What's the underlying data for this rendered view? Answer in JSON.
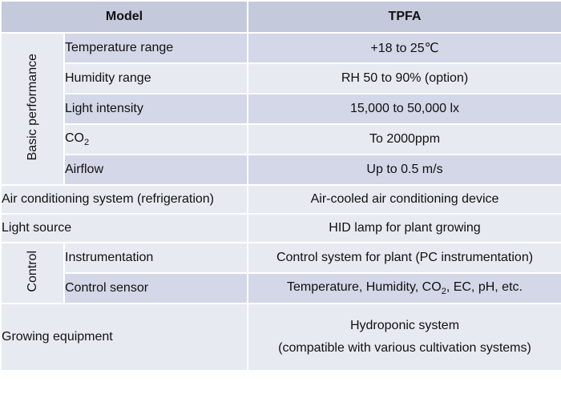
{
  "header": {
    "model": "Model",
    "tpfa": "TPFA"
  },
  "groups": {
    "basic": "Basic performance",
    "control": "Control"
  },
  "rows": {
    "temperature": {
      "label": "Temperature range",
      "value": "+18 to 25℃"
    },
    "humidity": {
      "label": "Humidity range",
      "value": "RH 50 to 90% (option)"
    },
    "light": {
      "label": "Light intensity",
      "value": "15,000 to 50,000 lx"
    },
    "co2": {
      "label_main": "CO",
      "label_sub": "2",
      "value": "To 2000ppm"
    },
    "airflow": {
      "label": "Airflow",
      "value": "Up to 0.5 m/s"
    },
    "aircon": {
      "label": "Air conditioning system (refrigeration)",
      "value": "Air-cooled air conditioning device"
    },
    "lightsource": {
      "label": "Light source",
      "value": "HID lamp for plant growing"
    },
    "instrumentation": {
      "label": "Instrumentation",
      "value": "Control system for plant (PC instrumentation)"
    },
    "sensor": {
      "label": "Control sensor",
      "value_pre": "Temperature, Humidity, CO",
      "value_sub": "2",
      "value_post": ", EC, pH, etc."
    },
    "growing": {
      "label": "Growing equipment",
      "value_line1": "Hydroponic system",
      "value_line2": "(compatible with various cultivation systems)"
    }
  }
}
